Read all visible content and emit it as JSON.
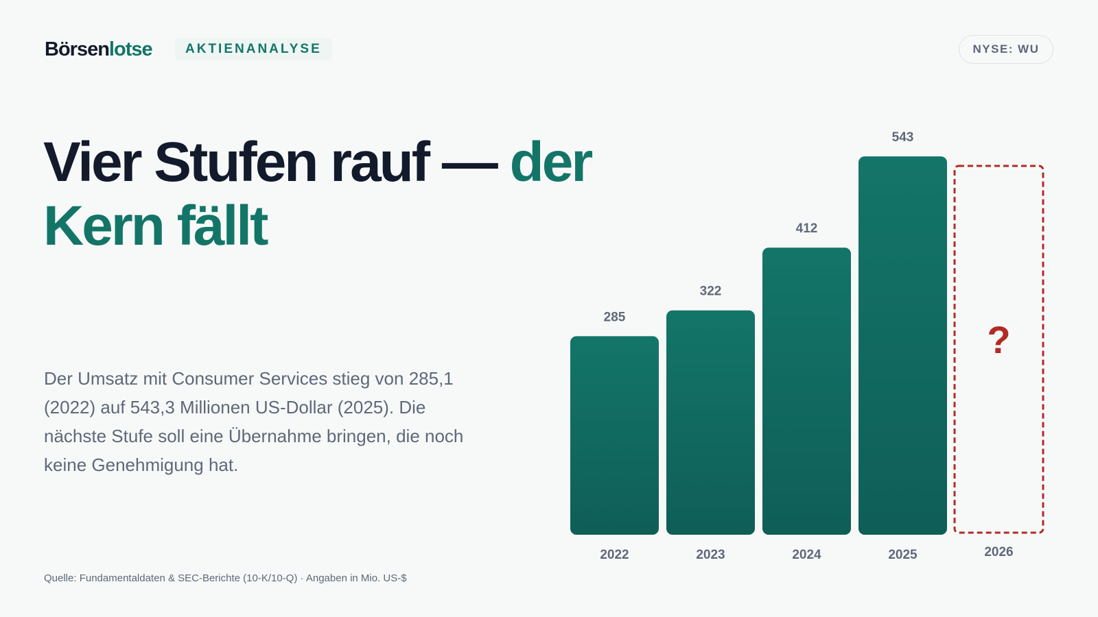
{
  "header": {
    "brand_main": "Börsen",
    "brand_accent": "lotse",
    "section_tag": "AKTIENANALYSE",
    "ticker": "NYSE: WU"
  },
  "headline": {
    "line_dark": "Vier Stufen rauf — ",
    "line_accent": "der Kern fällt"
  },
  "body": {
    "text": "Der Umsatz mit Consumer Services stieg von 285,1 (2022) auf 543,3 Millionen US-Dollar (2025). Die nächste Stufe soll eine Übernahme bringen, die noch keine Genehmigung hat."
  },
  "source": "Quelle: Fundamentaldaten & SEC-Berichte (10-K/10-Q) · Angaben in Mio. US-$",
  "colors": {
    "bar": "#137568",
    "placeholder": "#b22a24",
    "text_dark": "#121a2b",
    "text_muted": "#5e6878"
  },
  "chart_data": {
    "type": "bar",
    "categories": [
      "2022",
      "2023",
      "2024",
      "2025"
    ],
    "values": [
      285,
      322,
      412,
      543
    ],
    "value_labels": [
      "285",
      "322",
      "412",
      "543"
    ],
    "placeholder": {
      "category": "2026",
      "label": "?"
    },
    "title": "",
    "xlabel": "",
    "ylabel": "",
    "ylim": [
      0,
      610
    ],
    "grid": false,
    "legend": "none"
  }
}
